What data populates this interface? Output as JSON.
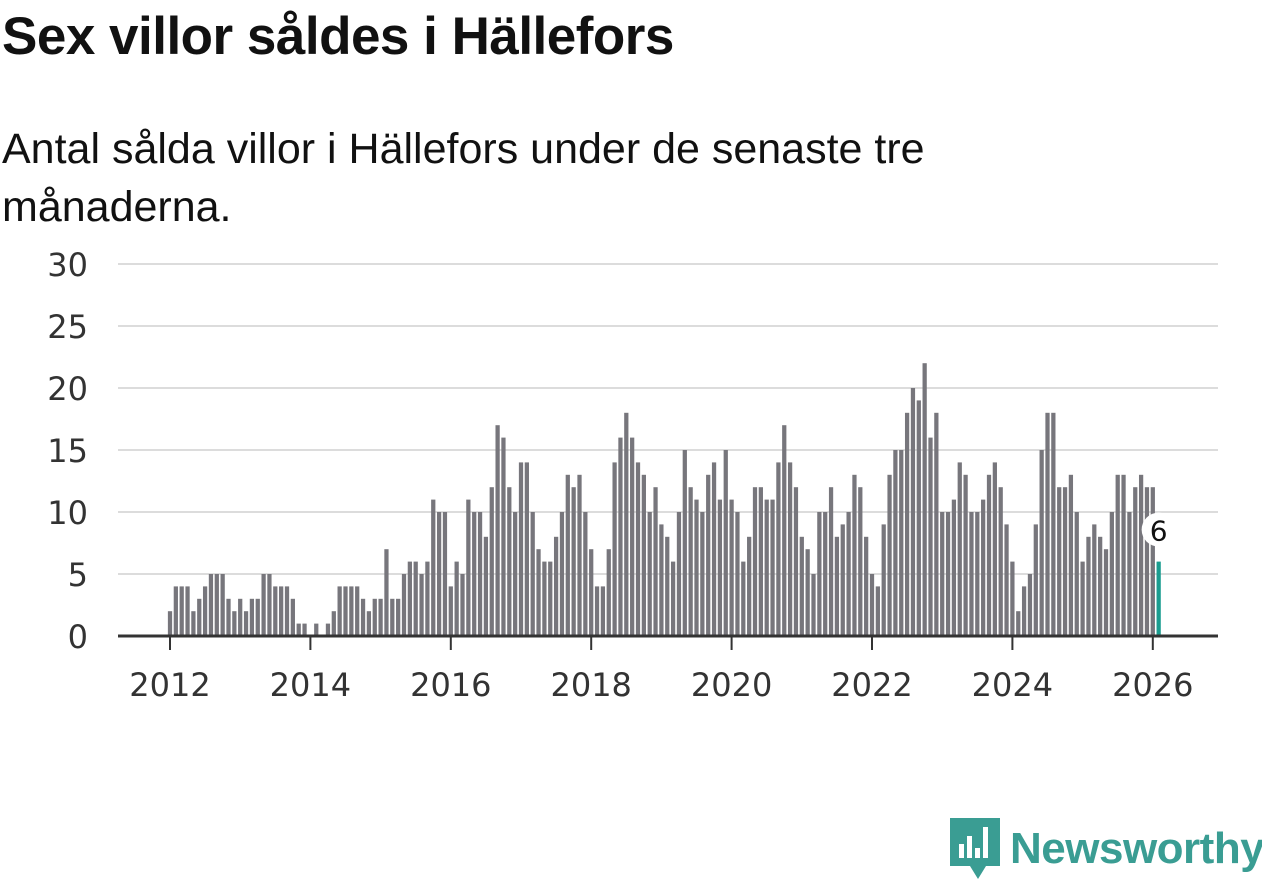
{
  "title": "Sex villor såldes i Hällefors",
  "subtitle": "Antal sålda villor i Hällefors under de senaste tre månaderna.",
  "brand": {
    "name": "Newsworthy",
    "icon": "newsworthy-logo-icon",
    "color": "#3a9d93"
  },
  "chart_data": {
    "type": "bar",
    "title": "Sex villor såldes i Hällefors",
    "xlabel": "",
    "ylabel": "",
    "ylim": [
      0,
      30
    ],
    "yticks": [
      "0",
      "5",
      "10",
      "15",
      "20",
      "25",
      "30"
    ],
    "xticks": [
      "2012",
      "2014",
      "2016",
      "2018",
      "2020",
      "2022",
      "2024",
      "2026"
    ],
    "grid": true,
    "bar_color": "#77767c",
    "highlight_color": "#1a9c8f",
    "start": "2012-01",
    "end": "2026-03",
    "highlight_label": "6",
    "values": [
      2,
      4,
      4,
      4,
      2,
      3,
      4,
      5,
      5,
      5,
      3,
      2,
      3,
      2,
      3,
      3,
      5,
      5,
      4,
      4,
      4,
      3,
      1,
      1,
      0,
      1,
      0,
      1,
      2,
      4,
      4,
      4,
      4,
      3,
      2,
      3,
      3,
      7,
      3,
      3,
      5,
      6,
      6,
      5,
      6,
      11,
      10,
      10,
      4,
      6,
      5,
      11,
      10,
      10,
      8,
      12,
      17,
      16,
      12,
      10,
      14,
      14,
      10,
      7,
      6,
      6,
      8,
      10,
      13,
      12,
      13,
      10,
      7,
      4,
      4,
      7,
      14,
      16,
      18,
      16,
      14,
      13,
      10,
      12,
      9,
      8,
      6,
      10,
      15,
      12,
      11,
      10,
      13,
      14,
      11,
      15,
      11,
      10,
      6,
      8,
      12,
      12,
      11,
      11,
      14,
      17,
      14,
      12,
      8,
      7,
      5,
      10,
      10,
      12,
      8,
      9,
      10,
      13,
      12,
      8,
      5,
      4,
      9,
      13,
      15,
      15,
      18,
      20,
      19,
      22,
      16,
      18,
      10,
      10,
      11,
      14,
      13,
      10,
      10,
      11,
      13,
      14,
      12,
      9,
      6,
      2,
      4,
      5,
      9,
      15,
      18,
      18,
      12,
      12,
      13,
      10,
      6,
      8,
      9,
      8,
      7,
      10,
      13,
      13,
      10,
      12,
      13,
      12,
      12,
      6
    ]
  }
}
